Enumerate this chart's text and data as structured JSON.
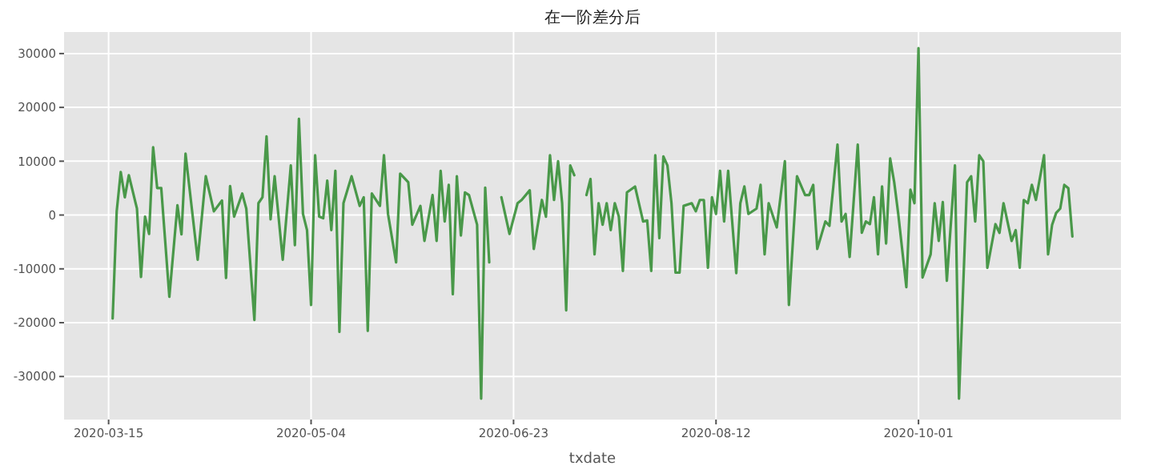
{
  "chart_data": {
    "type": "line",
    "title": "在一阶差分后",
    "xlabel": "txdate",
    "grid": true,
    "xlim": [
      "2020-03-04",
      "2020-11-20"
    ],
    "xticks": [
      {
        "value": "2020-03-15",
        "label": "2020-03-15"
      },
      {
        "value": "2020-05-04",
        "label": "2020-05-04"
      },
      {
        "value": "2020-06-23",
        "label": "2020-06-23"
      },
      {
        "value": "2020-08-12",
        "label": "2020-08-12"
      },
      {
        "value": "2020-10-01",
        "label": "2020-10-01"
      }
    ],
    "ylim": [
      -38000,
      34000
    ],
    "yticks": [
      -30000,
      -20000,
      -10000,
      0,
      10000,
      20000,
      30000
    ],
    "x": [
      "2020-03-16",
      "2020-03-17",
      "2020-03-18",
      "2020-03-19",
      "2020-03-20",
      "2020-03-22",
      "2020-03-23",
      "2020-03-24",
      "2020-03-25",
      "2020-03-26",
      "2020-03-27",
      "2020-03-28",
      "2020-03-30",
      "2020-04-01",
      "2020-04-02",
      "2020-04-03",
      "2020-04-06",
      "2020-04-08",
      "2020-04-10",
      "2020-04-12",
      "2020-04-13",
      "2020-04-14",
      "2020-04-15",
      "2020-04-17",
      "2020-04-18",
      "2020-04-20",
      "2020-04-21",
      "2020-04-22",
      "2020-04-23",
      "2020-04-24",
      "2020-04-25",
      "2020-04-27",
      "2020-04-29",
      "2020-04-30",
      "2020-05-01",
      "2020-05-02",
      "2020-05-03",
      "2020-05-04",
      "2020-05-05",
      "2020-05-06",
      "2020-05-07",
      "2020-05-08",
      "2020-05-09",
      "2020-05-10",
      "2020-05-11",
      "2020-05-12",
      "2020-05-14",
      "2020-05-16",
      "2020-05-17",
      "2020-05-18",
      "2020-05-19",
      "2020-05-21",
      "2020-05-22",
      "2020-05-23",
      "2020-05-25",
      "2020-05-26",
      "2020-05-28",
      "2020-05-29",
      "2020-05-31",
      "2020-06-01",
      "2020-06-03",
      "2020-06-04",
      "2020-06-05",
      "2020-06-06",
      "2020-06-07",
      "2020-06-08",
      "2020-06-09",
      "2020-06-10",
      "2020-06-11",
      "2020-06-12",
      "2020-06-14",
      "2020-06-15",
      "2020-06-16",
      "2020-06-17",
      "2020-06-18",
      "2020-06-20",
      "2020-06-22",
      "2020-06-24",
      "2020-06-25",
      "2020-06-27",
      "2020-06-28",
      "2020-06-30",
      "2020-07-01",
      "2020-07-02",
      "2020-07-03",
      "2020-07-04",
      "2020-07-05",
      "2020-07-06",
      "2020-07-07",
      "2020-07-08",
      "2020-07-09",
      "2020-07-11",
      "2020-07-12",
      "2020-07-13",
      "2020-07-14",
      "2020-07-15",
      "2020-07-16",
      "2020-07-17",
      "2020-07-18",
      "2020-07-19",
      "2020-07-20",
      "2020-07-21",
      "2020-07-23",
      "2020-07-25",
      "2020-07-26",
      "2020-07-27",
      "2020-07-28",
      "2020-07-29",
      "2020-07-30",
      "2020-07-31",
      "2020-08-01",
      "2020-08-02",
      "2020-08-03",
      "2020-08-04",
      "2020-08-06",
      "2020-08-07",
      "2020-08-08",
      "2020-08-09",
      "2020-08-10",
      "2020-08-11",
      "2020-08-12",
      "2020-08-13",
      "2020-08-14",
      "2020-08-15",
      "2020-08-17",
      "2020-08-18",
      "2020-08-19",
      "2020-08-20",
      "2020-08-22",
      "2020-08-23",
      "2020-08-24",
      "2020-08-25",
      "2020-08-27",
      "2020-08-29",
      "2020-08-30",
      "2020-09-01",
      "2020-09-03",
      "2020-09-04",
      "2020-09-05",
      "2020-09-06",
      "2020-09-08",
      "2020-09-09",
      "2020-09-11",
      "2020-09-12",
      "2020-09-13",
      "2020-09-14",
      "2020-09-16",
      "2020-09-17",
      "2020-09-18",
      "2020-09-19",
      "2020-09-20",
      "2020-09-21",
      "2020-09-22",
      "2020-09-23",
      "2020-09-24",
      "2020-09-25",
      "2020-09-26",
      "2020-09-28",
      "2020-09-29",
      "2020-09-30",
      "2020-10-01",
      "2020-10-02",
      "2020-10-04",
      "2020-10-05",
      "2020-10-06",
      "2020-10-07",
      "2020-10-08",
      "2020-10-10",
      "2020-10-11",
      "2020-10-13",
      "2020-10-14",
      "2020-10-15",
      "2020-10-16",
      "2020-10-17",
      "2020-10-18",
      "2020-10-20",
      "2020-10-21",
      "2020-10-22",
      "2020-10-24",
      "2020-10-25",
      "2020-10-26",
      "2020-10-27",
      "2020-10-28",
      "2020-10-29",
      "2020-10-30",
      "2020-11-01",
      "2020-11-02",
      "2020-11-03",
      "2020-11-04",
      "2020-11-05",
      "2020-11-06",
      "2020-11-07",
      "2020-11-08"
    ],
    "series": [
      {
        "color": "#2e8b2e",
        "values": [
          -19200,
          700,
          8000,
          3300,
          7400,
          1200,
          -11500,
          -300,
          -3500,
          12600,
          5000,
          5000,
          -15200,
          1800,
          -3600,
          11400,
          -8300,
          7200,
          700,
          2700,
          -11700,
          5400,
          -300,
          4000,
          1200,
          -19500,
          2200,
          3300,
          14600,
          -800,
          7200,
          -8300,
          9200,
          -5600,
          17900,
          200,
          -2800,
          -16700,
          11100,
          -300,
          -600,
          6400,
          -2800,
          8200,
          -21700,
          2200,
          7200,
          1700,
          3300,
          -21500,
          4000,
          1700,
          11100,
          200,
          -8800,
          7700,
          6100,
          -1800,
          1700,
          -4800,
          3700,
          -4800,
          8200,
          -1200,
          5600,
          -14700,
          7200,
          -3800,
          4200,
          3700,
          -1800,
          -34100,
          5100,
          -8800,
          null,
          3300,
          -3500,
          2200,
          2800,
          4600,
          -6300,
          2800,
          -300,
          11100,
          2800,
          10000,
          2200,
          -17700,
          9200,
          7400,
          null,
          3700,
          6700,
          -7300,
          2200,
          -1800,
          2200,
          -2800,
          2200,
          -300,
          -10400,
          4200,
          5300,
          -1200,
          -1000,
          -10400,
          11100,
          -4300,
          10900,
          9200,
          2200,
          -10700,
          -10700,
          1700,
          2200,
          700,
          2800,
          2800,
          -9800,
          3300,
          200,
          8200,
          -1200,
          8200,
          -10800,
          2200,
          5300,
          200,
          1200,
          5600,
          -7300,
          2200,
          -2300,
          10000,
          -16700,
          7200,
          3700,
          3700,
          5600,
          -6300,
          -1200,
          -2000,
          13100,
          -1200,
          200,
          -7800,
          13100,
          -3300,
          -1200,
          -1700,
          3300,
          -7300,
          5300,
          -5300,
          10500,
          6100,
          200,
          -13400,
          4700,
          2200,
          31000,
          -11600,
          -7300,
          2200,
          -4800,
          2400,
          -12200,
          9200,
          -34100,
          6100,
          7200,
          -1200,
          11100,
          10000,
          -9800,
          -1700,
          -3300,
          2200,
          -4800,
          -2800,
          -9800,
          2800,
          2200,
          5600,
          2800,
          11100,
          -7300,
          -1800,
          400,
          1200,
          5600,
          5000,
          -4000
        ]
      }
    ]
  }
}
